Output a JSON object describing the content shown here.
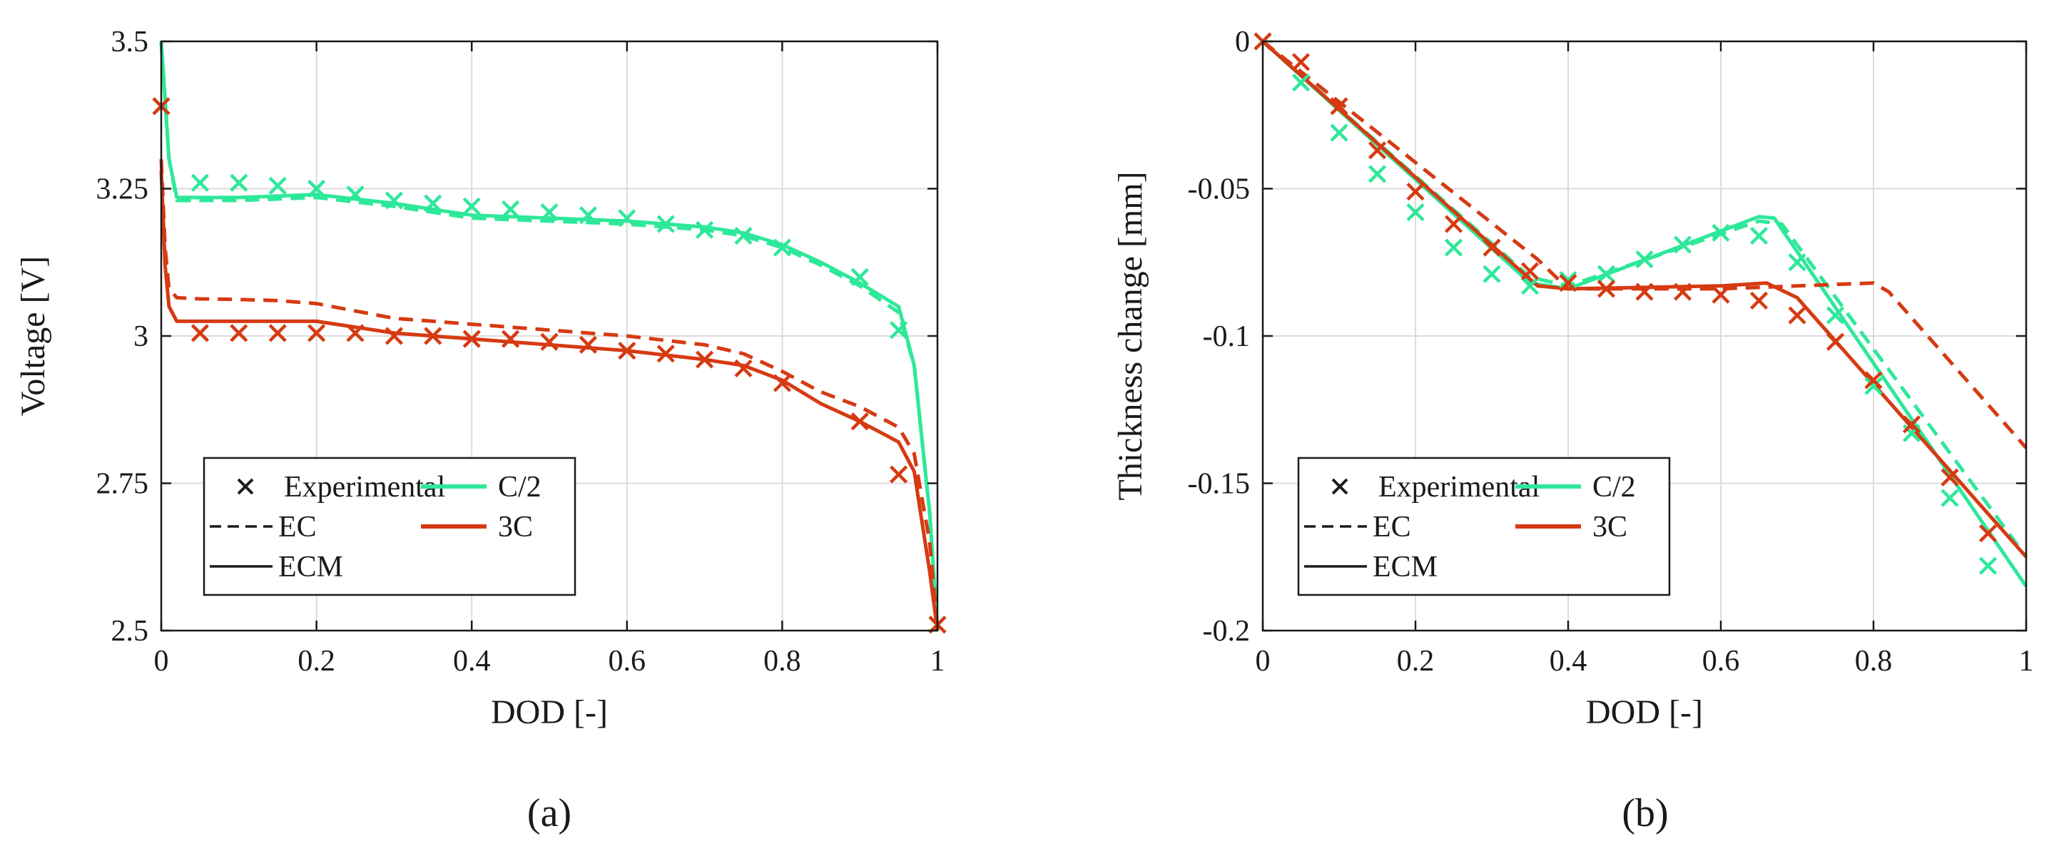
{
  "colors": {
    "c2": "#2EE89A",
    "c3": "#D63A12",
    "black": "#1a1a1a",
    "grid": "#dcdcdc"
  },
  "legend": {
    "experimental": "Experimental",
    "ec": "EC",
    "ecm": "ECM",
    "c2": "C/2",
    "c3": "3C"
  },
  "chart_data": [
    {
      "id": "a",
      "type": "line",
      "panel_label": "(a)",
      "title": "",
      "xlabel": "DOD [-]",
      "ylabel": "Voltage [V]",
      "xlim": [
        0,
        1
      ],
      "ylim": [
        2.5,
        3.5
      ],
      "xticks": [
        0,
        0.2,
        0.4,
        0.6,
        0.8,
        1
      ],
      "xtick_labels": [
        "0",
        "0.2",
        "0.4",
        "0.6",
        "0.8",
        "1"
      ],
      "yticks": [
        2.5,
        2.75,
        3,
        3.25,
        3.5
      ],
      "ytick_labels": [
        "2.5",
        "2.75",
        "3",
        "3.25",
        "3.5"
      ],
      "legend_position": "bottom-left",
      "series": [
        {
          "name": "C/2 Experimental",
          "rate": "c2",
          "kind": "experimental",
          "x": [
            0,
            0.05,
            0.1,
            0.15,
            0.2,
            0.25,
            0.3,
            0.35,
            0.4,
            0.45,
            0.5,
            0.55,
            0.6,
            0.65,
            0.7,
            0.75,
            0.8,
            0.9,
            0.95,
            1.0
          ],
          "y": [
            3.39,
            3.26,
            3.26,
            3.255,
            3.25,
            3.24,
            3.23,
            3.225,
            3.22,
            3.215,
            3.21,
            3.205,
            3.2,
            3.19,
            3.18,
            3.17,
            3.15,
            3.1,
            3.01,
            2.51
          ]
        },
        {
          "name": "3C Experimental",
          "rate": "c3",
          "kind": "experimental",
          "x": [
            0,
            0.05,
            0.1,
            0.15,
            0.2,
            0.25,
            0.3,
            0.35,
            0.4,
            0.45,
            0.5,
            0.55,
            0.6,
            0.65,
            0.7,
            0.75,
            0.8,
            0.9,
            0.95,
            1.0
          ],
          "y": [
            3.39,
            3.005,
            3.005,
            3.005,
            3.005,
            3.005,
            3.0,
            3.0,
            2.995,
            2.995,
            2.99,
            2.985,
            2.975,
            2.97,
            2.96,
            2.945,
            2.92,
            2.855,
            2.765,
            2.51
          ]
        },
        {
          "name": "C/2 EC",
          "rate": "c2",
          "kind": "ec",
          "x": [
            0,
            0.01,
            0.02,
            0.05,
            0.1,
            0.2,
            0.3,
            0.4,
            0.5,
            0.6,
            0.7,
            0.75,
            0.8,
            0.85,
            0.9,
            0.95,
            0.97,
            0.99,
            1.0
          ],
          "y": [
            3.5,
            3.3,
            3.23,
            3.23,
            3.23,
            3.235,
            3.22,
            3.2,
            3.195,
            3.19,
            3.18,
            3.17,
            3.15,
            3.12,
            3.085,
            3.04,
            2.95,
            2.7,
            2.5
          ]
        },
        {
          "name": "C/2 ECM",
          "rate": "c2",
          "kind": "ecm",
          "x": [
            0,
            0.01,
            0.02,
            0.05,
            0.1,
            0.2,
            0.3,
            0.4,
            0.5,
            0.6,
            0.7,
            0.75,
            0.8,
            0.85,
            0.9,
            0.95,
            0.97,
            0.99,
            1.0
          ],
          "y": [
            3.5,
            3.3,
            3.235,
            3.235,
            3.235,
            3.24,
            3.225,
            3.205,
            3.2,
            3.195,
            3.185,
            3.175,
            3.155,
            3.125,
            3.09,
            3.05,
            2.95,
            2.7,
            2.5
          ]
        },
        {
          "name": "3C EC",
          "rate": "c3",
          "kind": "ec",
          "x": [
            0,
            0.005,
            0.01,
            0.02,
            0.05,
            0.1,
            0.15,
            0.2,
            0.3,
            0.4,
            0.5,
            0.6,
            0.7,
            0.75,
            0.8,
            0.85,
            0.9,
            0.95,
            0.97,
            0.99,
            1.0
          ],
          "y": [
            3.3,
            3.15,
            3.08,
            3.065,
            3.063,
            3.062,
            3.06,
            3.055,
            3.03,
            3.02,
            3.01,
            3.0,
            2.985,
            2.97,
            2.94,
            2.905,
            2.88,
            2.845,
            2.8,
            2.65,
            2.5
          ]
        },
        {
          "name": "3C ECM",
          "rate": "c3",
          "kind": "ecm",
          "x": [
            0,
            0.005,
            0.01,
            0.02,
            0.05,
            0.1,
            0.15,
            0.2,
            0.25,
            0.3,
            0.4,
            0.5,
            0.6,
            0.7,
            0.75,
            0.8,
            0.85,
            0.9,
            0.95,
            0.97,
            0.99,
            1.0
          ],
          "y": [
            3.28,
            3.12,
            3.05,
            3.025,
            3.025,
            3.025,
            3.025,
            3.025,
            3.015,
            3.005,
            2.995,
            2.985,
            2.975,
            2.96,
            2.95,
            2.925,
            2.885,
            2.855,
            2.82,
            2.77,
            2.6,
            2.5
          ]
        }
      ]
    },
    {
      "id": "b",
      "type": "line",
      "panel_label": "(b)",
      "title": "",
      "xlabel": "DOD [-]",
      "ylabel": "Thickness change [mm]",
      "xlim": [
        0,
        1
      ],
      "ylim": [
        -0.2,
        0
      ],
      "xticks": [
        0,
        0.2,
        0.4,
        0.6,
        0.8,
        1
      ],
      "xtick_labels": [
        "0",
        "0.2",
        "0.4",
        "0.6",
        "0.8",
        "1"
      ],
      "yticks": [
        -0.2,
        -0.15,
        -0.1,
        -0.05,
        0
      ],
      "ytick_labels": [
        "-0.2",
        "-0.15",
        "-0.1",
        "-0.05",
        "0"
      ],
      "legend_position": "bottom-left",
      "series": [
        {
          "name": "C/2 Experimental",
          "rate": "c2",
          "kind": "experimental",
          "x": [
            0,
            0.05,
            0.1,
            0.15,
            0.2,
            0.25,
            0.3,
            0.35,
            0.4,
            0.45,
            0.5,
            0.55,
            0.6,
            0.65,
            0.7,
            0.75,
            0.8,
            0.85,
            0.9,
            0.95
          ],
          "y": [
            0,
            -0.014,
            -0.031,
            -0.045,
            -0.058,
            -0.07,
            -0.079,
            -0.083,
            -0.081,
            -0.079,
            -0.074,
            -0.069,
            -0.065,
            -0.066,
            -0.075,
            -0.093,
            -0.117,
            -0.133,
            -0.155,
            -0.178
          ]
        },
        {
          "name": "3C Experimental",
          "rate": "c3",
          "kind": "experimental",
          "x": [
            0,
            0.05,
            0.1,
            0.15,
            0.2,
            0.25,
            0.3,
            0.35,
            0.4,
            0.45,
            0.5,
            0.55,
            0.6,
            0.65,
            0.7,
            0.75,
            0.8,
            0.85,
            0.9,
            0.95
          ],
          "y": [
            0,
            -0.007,
            -0.022,
            -0.037,
            -0.051,
            -0.062,
            -0.07,
            -0.078,
            -0.082,
            -0.084,
            -0.085,
            -0.085,
            -0.086,
            -0.088,
            -0.093,
            -0.102,
            -0.115,
            -0.13,
            -0.148,
            -0.167
          ]
        },
        {
          "name": "C/2 EC",
          "rate": "c2",
          "kind": "ec",
          "x": [
            0,
            0.35,
            0.4,
            0.65,
            0.68,
            1.0
          ],
          "y": [
            0,
            -0.08,
            -0.083,
            -0.061,
            -0.062,
            -0.175
          ]
        },
        {
          "name": "C/2 ECM",
          "rate": "c2",
          "kind": "ecm",
          "x": [
            0,
            0.35,
            0.4,
            0.65,
            0.67,
            1.0
          ],
          "y": [
            0,
            -0.082,
            -0.084,
            -0.0595,
            -0.06,
            -0.185
          ]
        },
        {
          "name": "3C EC",
          "rate": "c3",
          "kind": "ec",
          "x": [
            0,
            0.36,
            0.4,
            0.6,
            0.7,
            0.8,
            0.82,
            1.0
          ],
          "y": [
            0,
            -0.074,
            -0.084,
            -0.084,
            -0.083,
            -0.082,
            -0.085,
            -0.138
          ]
        },
        {
          "name": "3C ECM",
          "rate": "c3",
          "kind": "ecm",
          "x": [
            0,
            0.36,
            0.4,
            0.6,
            0.66,
            0.7,
            1.0
          ],
          "y": [
            0,
            -0.083,
            -0.084,
            -0.083,
            -0.082,
            -0.087,
            -0.175
          ]
        }
      ]
    }
  ]
}
